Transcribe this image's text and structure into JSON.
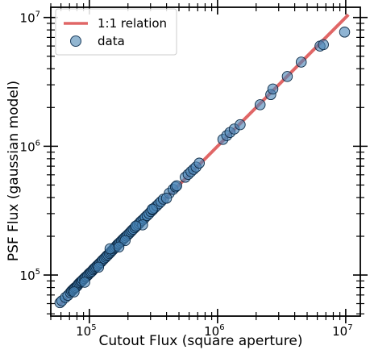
{
  "chart_data": {
    "type": "scatter",
    "xlabel": "Cutout Flux (square aperture)",
    "ylabel": "PSF Flux (gaussian model)",
    "xscale": "log",
    "yscale": "log",
    "xlim": [
      50000,
      13000000
    ],
    "ylim": [
      48000,
      12000000
    ],
    "grid": false,
    "legend_position": "top-left",
    "x_ticks": [
      {
        "base": "10",
        "exp": "5",
        "value": 100000
      },
      {
        "base": "10",
        "exp": "6",
        "value": 1000000
      },
      {
        "base": "10",
        "exp": "7",
        "value": 10000000
      }
    ],
    "y_ticks": [
      {
        "base": "10",
        "exp": "5",
        "value": 100000
      },
      {
        "base": "10",
        "exp": "6",
        "value": 1000000
      },
      {
        "base": "10",
        "exp": "7",
        "value": 10000000
      }
    ],
    "legend": [
      {
        "label": "1:1 relation",
        "kind": "line",
        "color": "#e06666"
      },
      {
        "label": "data",
        "kind": "marker",
        "color": "#6d9ec2"
      }
    ],
    "line": {
      "name": "1:1 relation",
      "x": [
        58000,
        10500000
      ],
      "y": [
        58000,
        10500000
      ],
      "color": "#e06666"
    },
    "series": [
      {
        "name": "data",
        "color": "#4a86b8",
        "points": [
          [
            59000,
            61000
          ],
          [
            61000,
            63000
          ],
          [
            65000,
            67000
          ],
          [
            68000,
            69500
          ],
          [
            71000,
            73000
          ],
          [
            72500,
            75000
          ],
          [
            74000,
            76500
          ],
          [
            75500,
            78000
          ],
          [
            77000,
            79500
          ],
          [
            78500,
            80500
          ],
          [
            80000,
            82000
          ],
          [
            81500,
            84000
          ],
          [
            83000,
            86000
          ],
          [
            84500,
            87500
          ],
          [
            86000,
            89000
          ],
          [
            87500,
            90000
          ],
          [
            89000,
            92000
          ],
          [
            91000,
            94000
          ],
          [
            93000,
            96000
          ],
          [
            95000,
            97500
          ],
          [
            97000,
            99500
          ],
          [
            99000,
            102000
          ],
          [
            101000,
            104000
          ],
          [
            103000,
            105500
          ],
          [
            105000,
            107500
          ],
          [
            107000,
            110000
          ],
          [
            109000,
            112000
          ],
          [
            111000,
            114000
          ],
          [
            113000,
            116000
          ],
          [
            115500,
            118500
          ],
          [
            118000,
            121000
          ],
          [
            120500,
            123500
          ],
          [
            123000,
            126000
          ],
          [
            125500,
            129000
          ],
          [
            128000,
            131500
          ],
          [
            131000,
            134500
          ],
          [
            134000,
            137500
          ],
          [
            137000,
            141000
          ],
          [
            140000,
            143500
          ],
          [
            143000,
            147000
          ],
          [
            146000,
            150000
          ],
          [
            149000,
            153500
          ],
          [
            152000,
            156500
          ],
          [
            155000,
            160000
          ],
          [
            158000,
            163000
          ],
          [
            161000,
            166500
          ],
          [
            164000,
            170000
          ],
          [
            167000,
            173500
          ],
          [
            170000,
            176000
          ],
          [
            174000,
            180000
          ],
          [
            178000,
            184000
          ],
          [
            182000,
            188500
          ],
          [
            186000,
            192000
          ],
          [
            190000,
            196500
          ],
          [
            195000,
            201000
          ],
          [
            200000,
            206000
          ],
          [
            205000,
            211000
          ],
          [
            210000,
            216500
          ],
          [
            215000,
            222000
          ],
          [
            220000,
            227000
          ],
          [
            226000,
            233000
          ],
          [
            232000,
            239000
          ],
          [
            238000,
            245000
          ],
          [
            244000,
            251000
          ],
          [
            250000,
            258000
          ],
          [
            257000,
            265000
          ],
          [
            265000,
            272000
          ],
          [
            273000,
            281000
          ],
          [
            282000,
            290000
          ],
          [
            292000,
            300000
          ],
          [
            302000,
            311000
          ],
          [
            312000,
            321000
          ],
          [
            322000,
            332000
          ],
          [
            335000,
            345000
          ],
          [
            348000,
            358000
          ],
          [
            362000,
            372000
          ],
          [
            378000,
            388000
          ],
          [
            420000,
            432000
          ],
          [
            450000,
            462000
          ],
          [
            470000,
            483000
          ],
          [
            480000,
            493000
          ],
          [
            560000,
            575000
          ],
          [
            590000,
            605000
          ],
          [
            620000,
            635000
          ],
          [
            650000,
            662000
          ],
          [
            680000,
            690000
          ],
          [
            720000,
            740000
          ],
          [
            1100000,
            1130000
          ],
          [
            1180000,
            1210000
          ],
          [
            1250000,
            1280000
          ],
          [
            1350000,
            1360000
          ],
          [
            1500000,
            1470000
          ],
          [
            2150000,
            2100000
          ],
          [
            2600000,
            2520000
          ],
          [
            2700000,
            2780000
          ],
          [
            3500000,
            3480000
          ],
          [
            4500000,
            4500000
          ],
          [
            6300000,
            6000000
          ],
          [
            6700000,
            6150000
          ],
          [
            9800000,
            7700000
          ],
          [
            145000,
            160000
          ],
          [
            190000,
            185000
          ],
          [
            260000,
            245000
          ],
          [
            310000,
            325000
          ],
          [
            118000,
            115000
          ],
          [
            92000,
            88000
          ],
          [
            76000,
            74000
          ],
          [
            400000,
            395000
          ],
          [
            230000,
            240000
          ],
          [
            170000,
            165000
          ]
        ]
      }
    ]
  }
}
